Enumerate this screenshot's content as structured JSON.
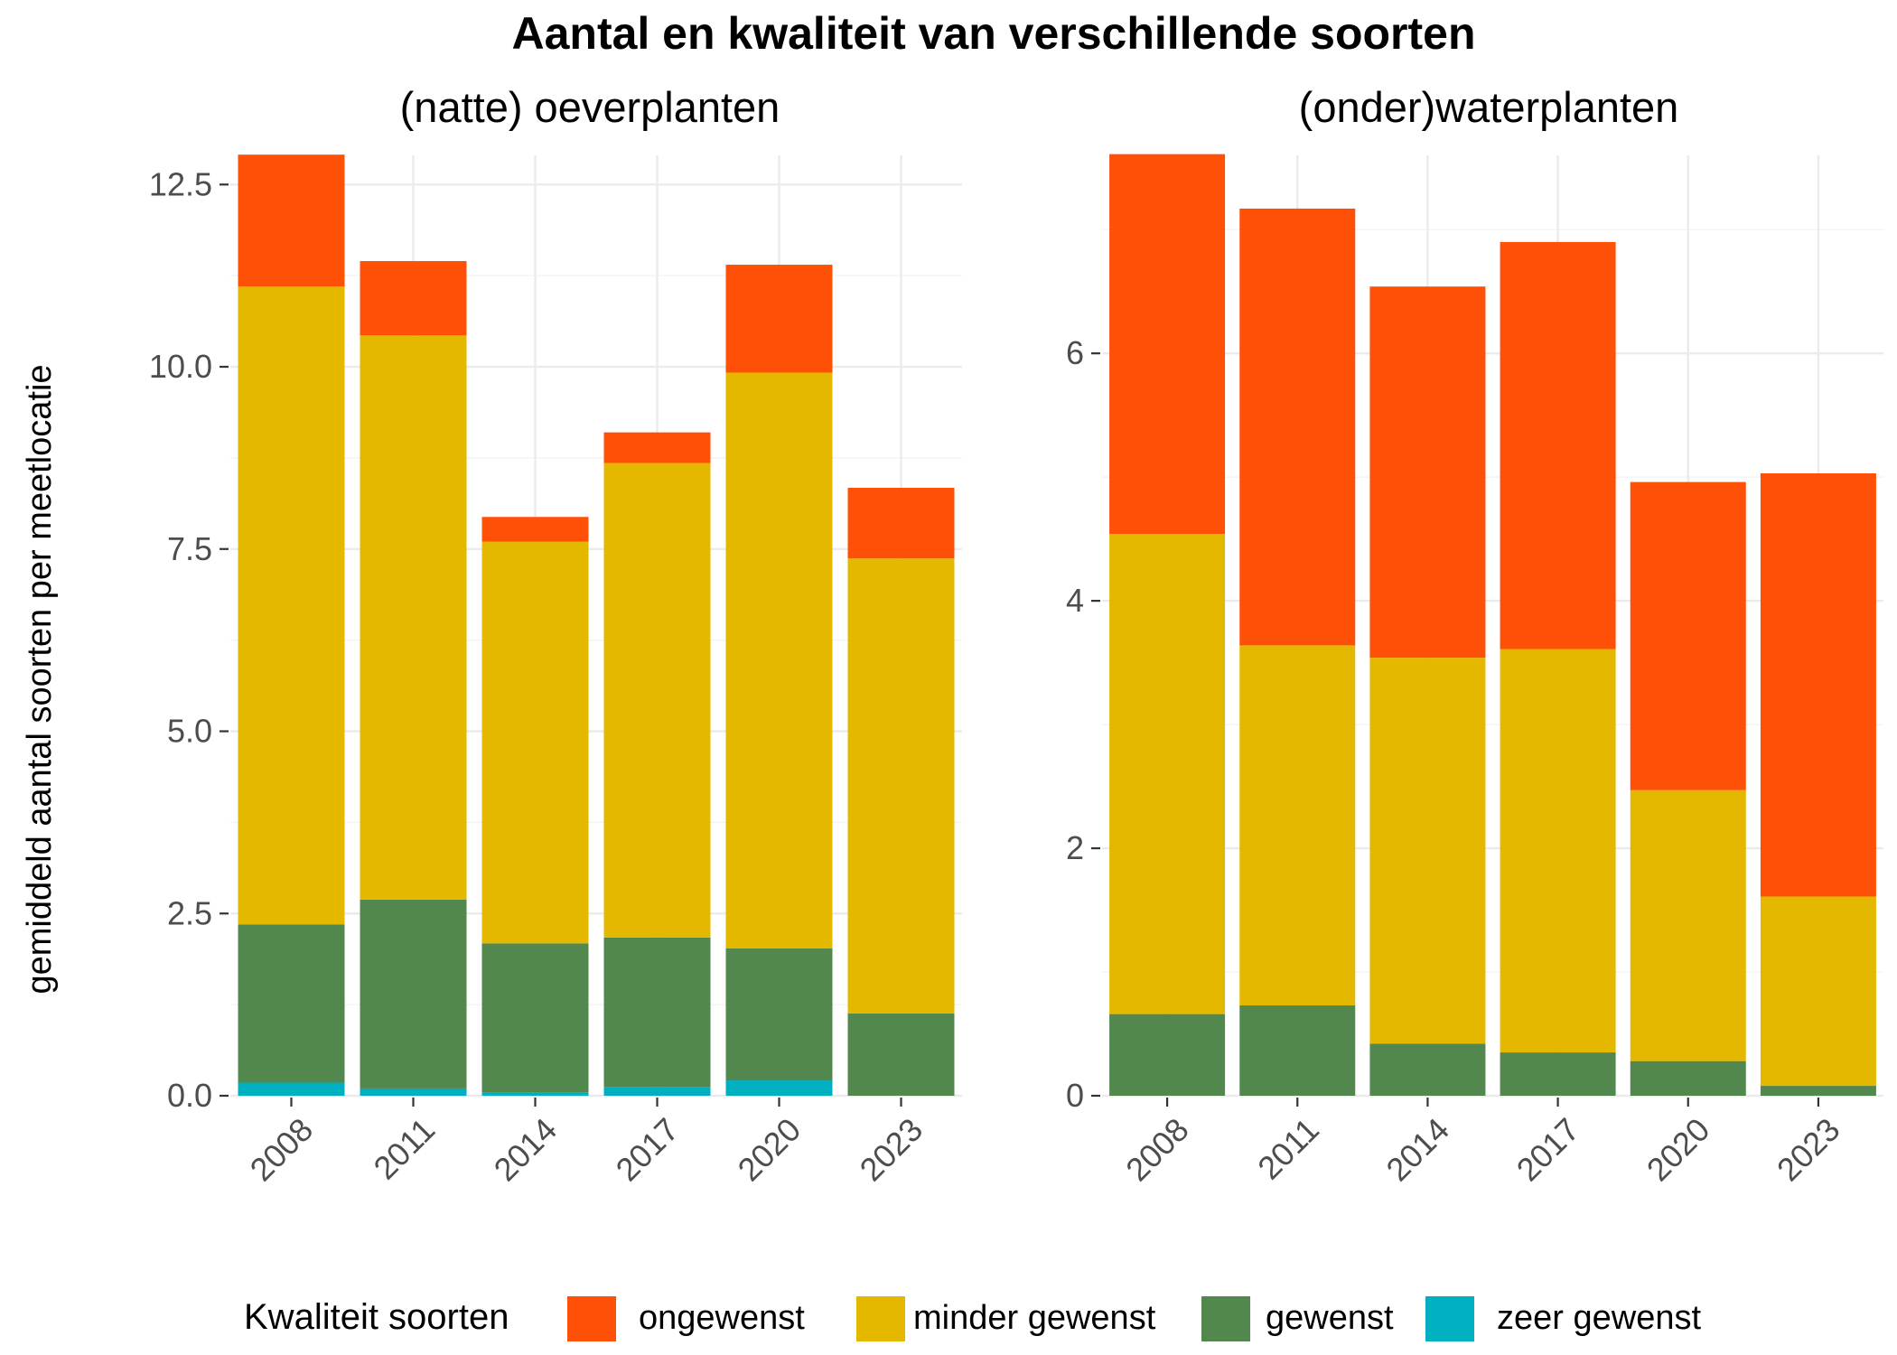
{
  "title": "Aantal en kwaliteit van verschillende soorten",
  "ylabel": "gemiddeld aantal soorten per meetlocatie",
  "legend": {
    "title": "Kwaliteit soorten",
    "items": [
      {
        "label": "ongewenst",
        "color": "#FF5008"
      },
      {
        "label": "minder gewenst",
        "color": "#E5B800"
      },
      {
        "label": "gewenst",
        "color": "#52874E"
      },
      {
        "label": "zeer gewenst",
        "color": "#00B0C0"
      }
    ]
  },
  "colors": {
    "ongewenst": "#FF5008",
    "minder gewenst": "#E5B800",
    "gewenst": "#52874E",
    "zeer gewenst": "#00B0C0"
  },
  "chart_data": [
    {
      "type": "bar",
      "stacked": true,
      "title": "(natte) oeverplanten",
      "categories": [
        "2008",
        "2011",
        "2014",
        "2017",
        "2020",
        "2023"
      ],
      "ylim": [
        0,
        12.9
      ],
      "yticks": [
        "0.0",
        "2.5",
        "5.0",
        "7.5",
        "10.0",
        "12.5"
      ],
      "grid": true,
      "series": [
        {
          "name": "zeer gewenst",
          "values": [
            0.18,
            0.1,
            0.04,
            0.12,
            0.21,
            0.0
          ]
        },
        {
          "name": "gewenst",
          "values": [
            2.17,
            2.59,
            2.05,
            2.05,
            1.81,
            1.13
          ]
        },
        {
          "name": "minder gewenst",
          "values": [
            8.75,
            7.74,
            5.51,
            6.51,
            7.9,
            6.24
          ]
        },
        {
          "name": "ongewenst",
          "values": [
            1.81,
            1.02,
            0.34,
            0.42,
            1.48,
            0.97
          ]
        }
      ]
    },
    {
      "type": "bar",
      "stacked": true,
      "title": "(onder)waterplanten",
      "categories": [
        "2008",
        "2011",
        "2014",
        "2017",
        "2020",
        "2023"
      ],
      "ylim": [
        0,
        7.6
      ],
      "yticks": [
        "0",
        "2",
        "4",
        "6"
      ],
      "grid": true,
      "series": [
        {
          "name": "zeer gewenst",
          "values": [
            0,
            0,
            0,
            0,
            0,
            0
          ]
        },
        {
          "name": "gewenst",
          "values": [
            0.66,
            0.73,
            0.42,
            0.35,
            0.28,
            0.08
          ]
        },
        {
          "name": "minder gewenst",
          "values": [
            3.88,
            2.91,
            3.12,
            3.26,
            2.19,
            1.53
          ]
        },
        {
          "name": "ongewenst",
          "values": [
            3.07,
            3.53,
            3.0,
            3.29,
            2.49,
            3.42
          ]
        }
      ]
    }
  ]
}
